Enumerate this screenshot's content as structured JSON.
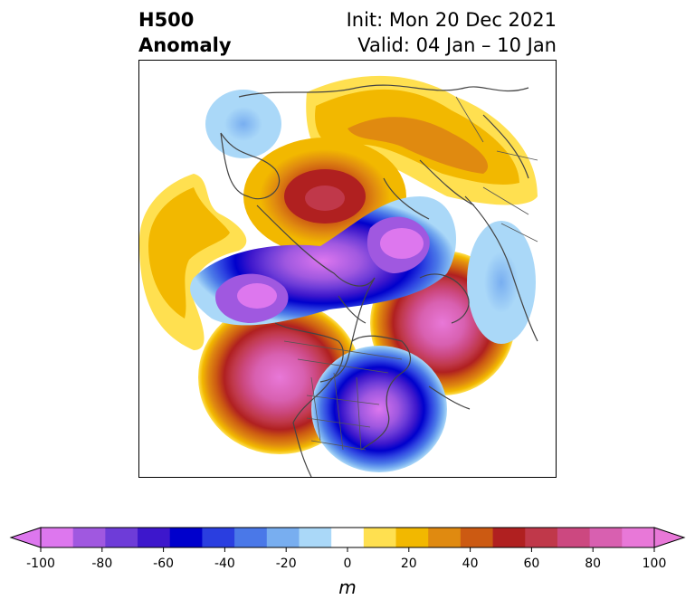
{
  "title": {
    "left_line1": "H500",
    "left_line2": "Anomaly",
    "right_line1": "Init: Mon 20 Dec 2021",
    "right_line2": "Valid: 04 Jan – 10 Jan"
  },
  "colorbar": {
    "unit": "m",
    "extend": "both",
    "boundaries": [
      -100,
      -90,
      -80,
      -70,
      -60,
      -50,
      -40,
      -30,
      -20,
      -10,
      10,
      20,
      30,
      40,
      50,
      60,
      70,
      80,
      90,
      100
    ],
    "colors": [
      "#dd77ee",
      "#a058e0",
      "#6e3cd8",
      "#3d17cc",
      "#0000cc",
      "#2a3ee0",
      "#4a78e8",
      "#78aef0",
      "#aad8f8",
      "#ffffff",
      "#ffe050",
      "#f2b800",
      "#e08a10",
      "#cc5a12",
      "#b02020",
      "#c0384a",
      "#cc4880",
      "#d860b0",
      "#e878d8"
    ],
    "under_color": "#dd77ee",
    "over_color": "#e878d8",
    "ticks": [
      "-100",
      "-80",
      "-60",
      "-40",
      "-20",
      "0",
      "20",
      "40",
      "60",
      "80",
      "100"
    ]
  },
  "anomaly_centers": [
    {
      "id": "alaska-aleutian-ridge",
      "value": 85
    },
    {
      "id": "nw-atlantic-ridge",
      "value": 100
    },
    {
      "id": "western-us-ridge",
      "value": 85
    },
    {
      "id": "north-pacific-trough",
      "value": -85
    },
    {
      "id": "arctic-trough",
      "value": -100
    },
    {
      "id": "eastern-us-trough",
      "value": -95
    },
    {
      "id": "eurasia-north-ridge",
      "value": 40
    },
    {
      "id": "central-pacific-ridge",
      "value": 20
    },
    {
      "id": "east-asia-trough",
      "value": -20
    }
  ]
}
